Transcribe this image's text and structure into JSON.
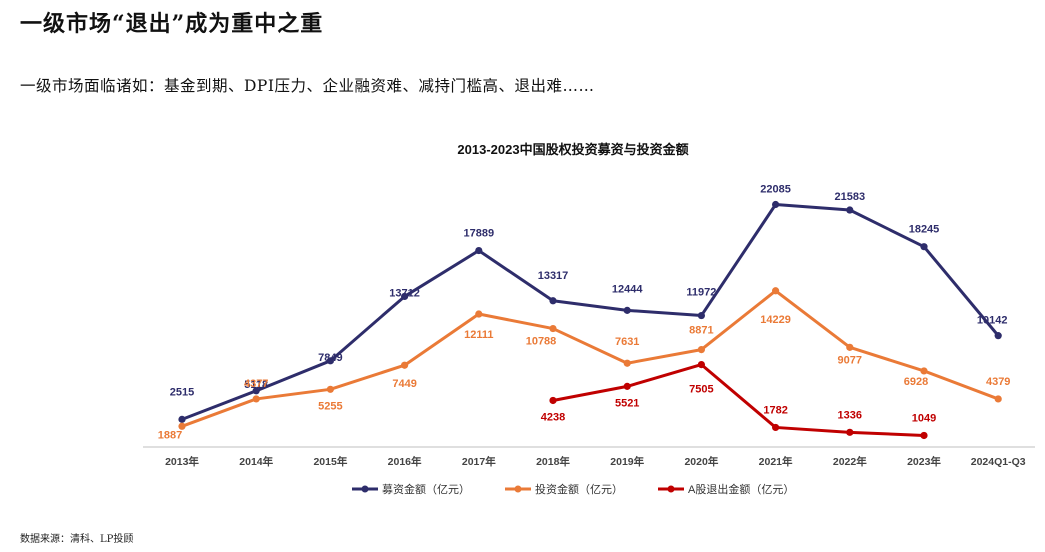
{
  "header": {
    "title": "一级市场“退出”成为重中之重",
    "subtitle": "一级市场面临诸如：基金到期、DPI压力、企业融资难、减持门槛高、退出难……"
  },
  "footer": {
    "source": "数据来源：清科、LP投顾"
  },
  "colors": {
    "fundraising": "#2e2d6b",
    "investment": "#ea7a37",
    "exit": "#c00000",
    "axis": "#bfbfbf"
  },
  "chart_data": {
    "type": "line",
    "title": "2013-2023中国股权投资募资与投资金额",
    "xlabel": "",
    "ylabel": "",
    "ylim": [
      0,
      24500
    ],
    "grid": false,
    "legend_position": "bottom",
    "categories": [
      "2013年",
      "2014年",
      "2015年",
      "2016年",
      "2017年",
      "2018年",
      "2019年",
      "2020年",
      "2021年",
      "2022年",
      "2023年",
      "2024Q1-Q3"
    ],
    "series": [
      {
        "name": "募资金额（亿元）",
        "color_key": "fundraising",
        "values": [
          2515,
          5118,
          7849,
          13712,
          17889,
          13317,
          12444,
          11972,
          22085,
          21583,
          18245,
          10142
        ]
      },
      {
        "name": "投资金额（亿元）",
        "color_key": "investment",
        "values": [
          1887,
          4377,
          5255,
          7449,
          12111,
          10788,
          7631,
          8871,
          14229,
          9077,
          6928,
          4379
        ]
      },
      {
        "name": "A股退出金额（亿元）",
        "color_key": "exit",
        "values": [
          null,
          null,
          null,
          null,
          null,
          4238,
          5521,
          7505,
          1782,
          1336,
          1049,
          null
        ]
      }
    ]
  }
}
